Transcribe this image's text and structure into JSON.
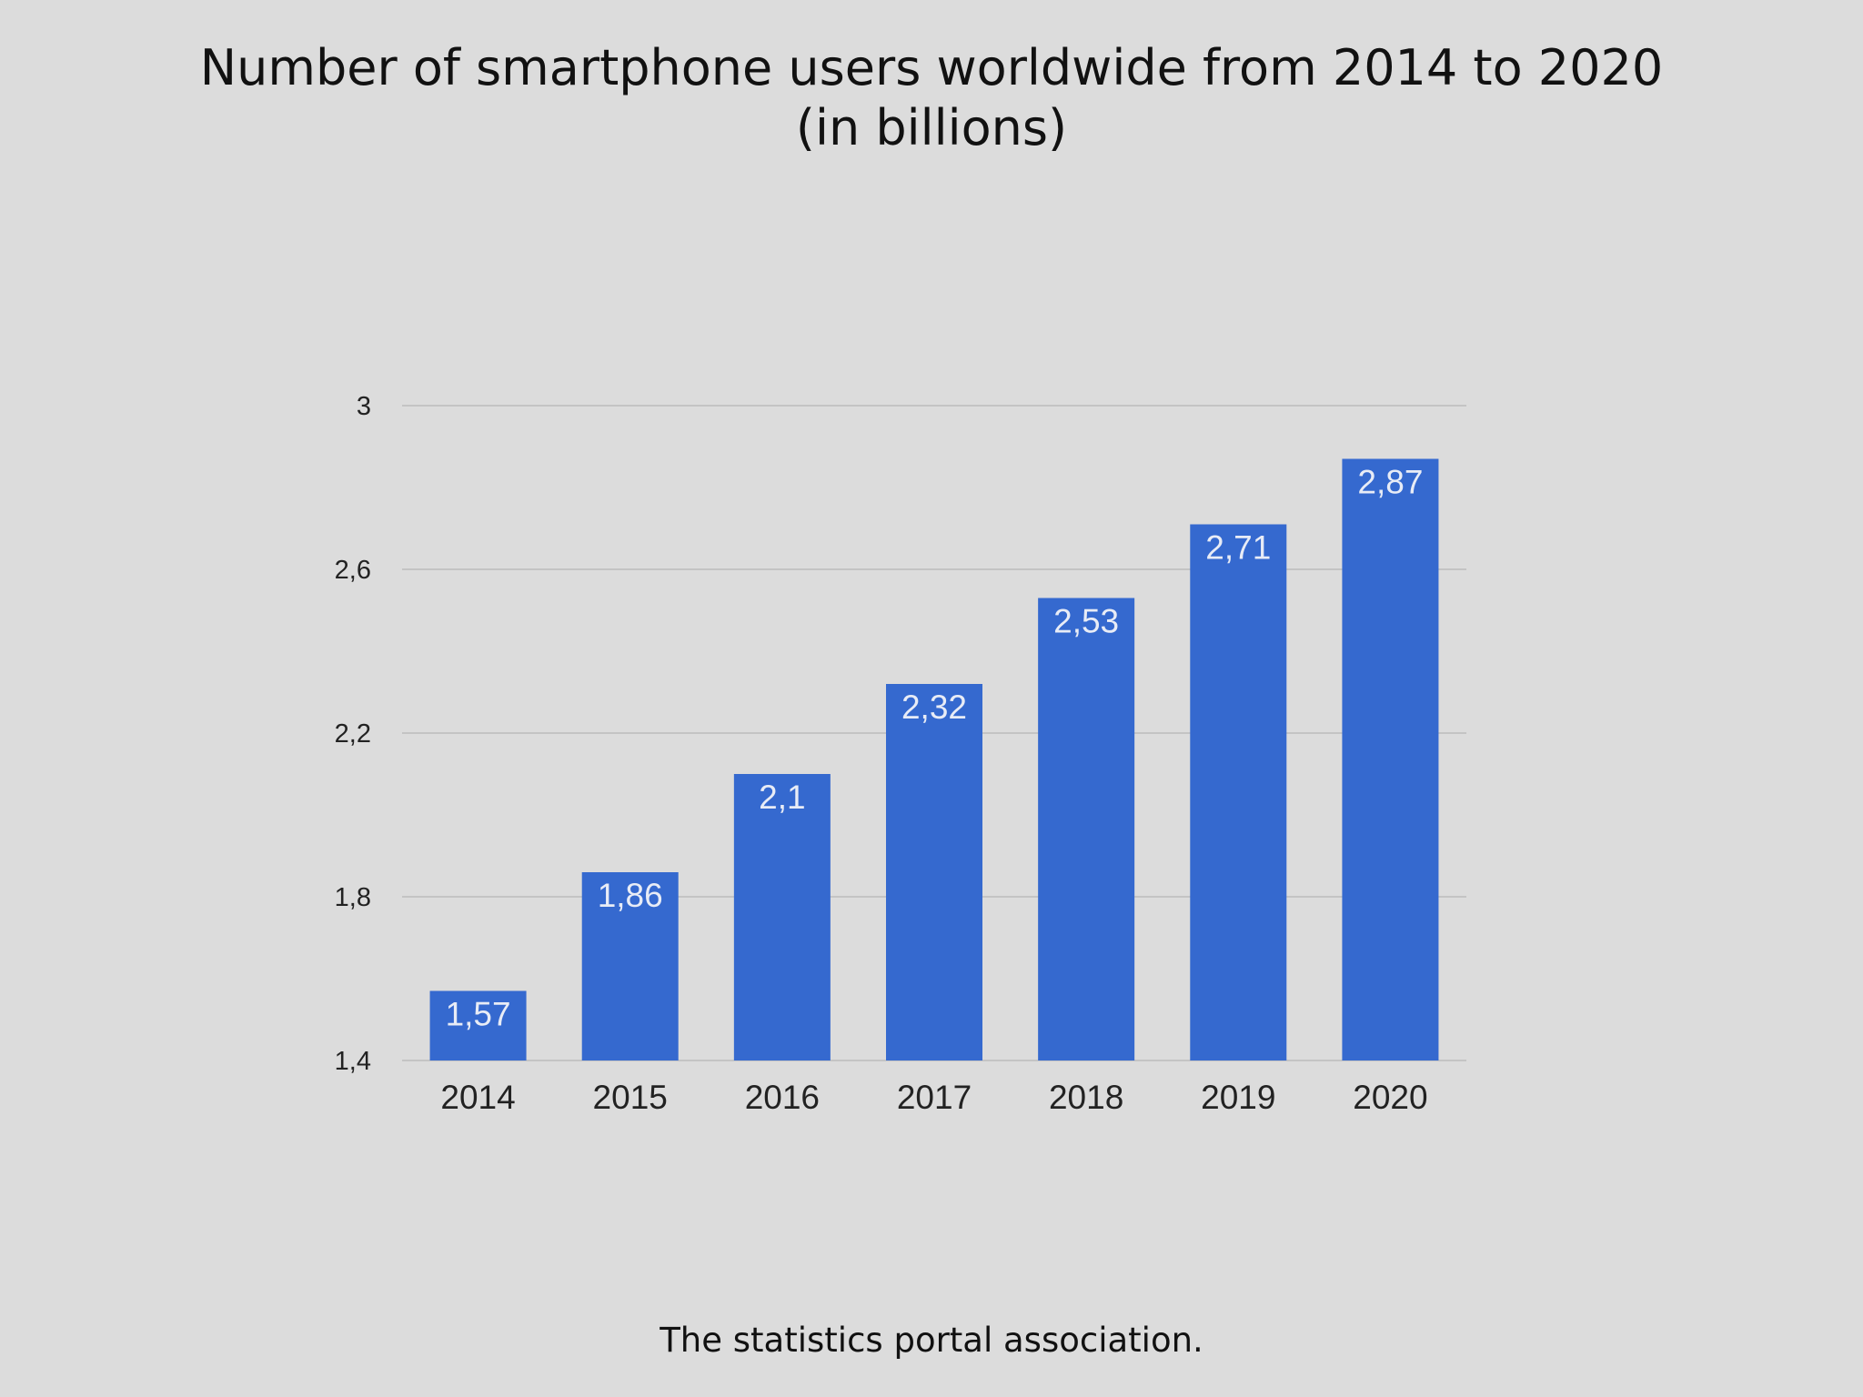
{
  "title": {
    "line1": "Number of smartphone users worldwide from 2014 to 2020",
    "line2": "(in billions)"
  },
  "footer": {
    "text": "The statistics portal association."
  },
  "colors": {
    "bar": "#3569cf",
    "grid": "#c4c4c4",
    "background": "#dcdcdc"
  },
  "chart_data": {
    "type": "bar",
    "title": "Number of smartphone users worldwide from 2014 to 2020 (in billions)",
    "xlabel": "",
    "ylabel": "",
    "categories": [
      "2014",
      "2015",
      "2016",
      "2017",
      "2018",
      "2019",
      "2020"
    ],
    "values": [
      1.57,
      1.86,
      2.1,
      2.32,
      2.53,
      2.71,
      2.87
    ],
    "value_labels": [
      "1,57",
      "1,86",
      "2,1",
      "2,32",
      "2,53",
      "2,71",
      "2,87"
    ],
    "ylim": [
      1.4,
      3
    ],
    "yticks": [
      1.4,
      1.8,
      2.2,
      2.6,
      3
    ],
    "ytick_labels": [
      "1,4",
      "1,8",
      "2,2",
      "2,6",
      "3"
    ],
    "grid": true,
    "legend": "none"
  }
}
